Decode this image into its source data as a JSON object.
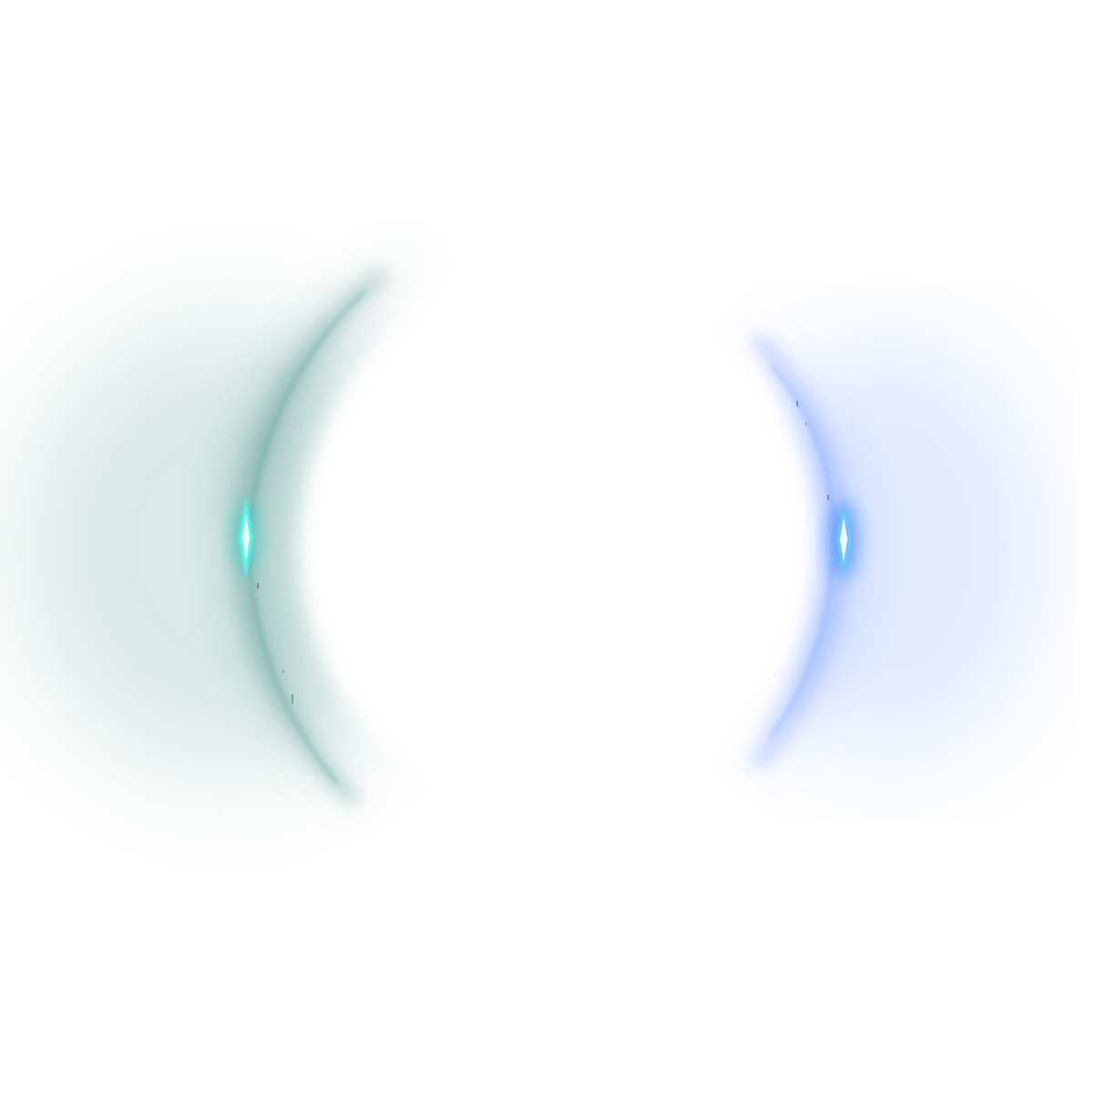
{
  "image": {
    "background_color": "#ffffff",
    "left_glow": {
      "color": "#1f7a70",
      "core_color": "#4ff0e6",
      "icon": "teal-crescent-glow"
    },
    "right_glow": {
      "color": "#2a6cff",
      "core_color": "#7fd4ff",
      "icon": "blue-crescent-glow"
    }
  }
}
